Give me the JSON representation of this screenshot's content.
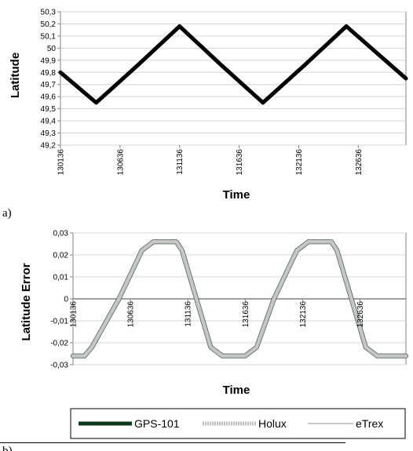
{
  "chart_data": [
    {
      "panel": "a)",
      "type": "line",
      "xlabel": "Time",
      "ylabel": "Latitude",
      "ylim": [
        49.2,
        50.3
      ],
      "xlim": [
        130136,
        133036
      ],
      "yticks": [
        "49,2",
        "49,3",
        "49,4",
        "49,5",
        "49,6",
        "49,7",
        "49,8",
        "49,9",
        "50",
        "50,1",
        "50,2",
        "50,3"
      ],
      "xticks": [
        "130136",
        "130636",
        "131136",
        "131636",
        "132136",
        "132636"
      ],
      "grid": true,
      "series": [
        {
          "color": "#000000",
          "points": [
            [
              130136,
              49.8
            ],
            [
              130436,
              49.55
            ],
            [
              130786,
              49.86
            ],
            [
              131136,
              50.18
            ],
            [
              131486,
              49.86
            ],
            [
              131836,
              49.55
            ],
            [
              132186,
              49.86
            ],
            [
              132536,
              50.18
            ],
            [
              133036,
              49.75
            ]
          ]
        }
      ]
    },
    {
      "panel": "b)",
      "type": "line",
      "xlabel": "Time",
      "ylabel": "Latitude Error",
      "ylim": [
        -0.03,
        0.03
      ],
      "xlim": [
        130136,
        133036
      ],
      "yticks": [
        "-0,03",
        "-0,02",
        "-0,01",
        "0",
        "0,01",
        "0,02",
        "0,03"
      ],
      "xticks": [
        "130136",
        "130636",
        "131136",
        "131636",
        "132136",
        "132636"
      ],
      "grid": true,
      "legend_position": "bottom",
      "series": [
        {
          "name": "GPS-101",
          "color": "#0b3d1a",
          "points": [
            [
              130136,
              -0.026
            ],
            [
              130236,
              -0.026
            ],
            [
              130300,
              -0.022
            ],
            [
              130536,
              0.0
            ],
            [
              130736,
              0.022
            ],
            [
              130836,
              0.026
            ],
            [
              131036,
              0.026
            ],
            [
              131086,
              0.022
            ],
            [
              131336,
              -0.022
            ],
            [
              131436,
              -0.026
            ],
            [
              131636,
              -0.026
            ],
            [
              131736,
              -0.022
            ],
            [
              131886,
              0.0
            ],
            [
              132086,
              0.022
            ],
            [
              132186,
              0.026
            ],
            [
              132386,
              0.026
            ],
            [
              132436,
              0.022
            ],
            [
              132686,
              -0.022
            ],
            [
              132786,
              -0.026
            ],
            [
              133036,
              -0.026
            ]
          ]
        },
        {
          "name": "Holux",
          "color": "#bfbfbf",
          "points": [
            [
              130136,
              -0.026
            ],
            [
              130236,
              -0.026
            ],
            [
              130300,
              -0.022
            ],
            [
              130536,
              0.0
            ],
            [
              130736,
              0.022
            ],
            [
              130836,
              0.026
            ],
            [
              131036,
              0.026
            ],
            [
              131086,
              0.022
            ],
            [
              131336,
              -0.022
            ],
            [
              131436,
              -0.026
            ],
            [
              131636,
              -0.026
            ],
            [
              131736,
              -0.022
            ],
            [
              131886,
              0.0
            ],
            [
              132086,
              0.022
            ],
            [
              132186,
              0.026
            ],
            [
              132386,
              0.026
            ],
            [
              132436,
              0.022
            ],
            [
              132686,
              -0.022
            ],
            [
              132786,
              -0.026
            ],
            [
              133036,
              -0.026
            ]
          ]
        },
        {
          "name": "eTrex",
          "color": "#c8c8c8",
          "points": [
            [
              130136,
              -0.026
            ],
            [
              130236,
              -0.026
            ],
            [
              130300,
              -0.022
            ],
            [
              130536,
              0.0
            ],
            [
              130736,
              0.022
            ],
            [
              130836,
              0.026
            ],
            [
              131036,
              0.026
            ],
            [
              131086,
              0.022
            ],
            [
              131336,
              -0.022
            ],
            [
              131436,
              -0.026
            ],
            [
              131636,
              -0.026
            ],
            [
              131736,
              -0.022
            ],
            [
              131886,
              0.0
            ],
            [
              132086,
              0.022
            ],
            [
              132186,
              0.026
            ],
            [
              132386,
              0.026
            ],
            [
              132436,
              0.022
            ],
            [
              132686,
              -0.022
            ],
            [
              132786,
              -0.026
            ],
            [
              133036,
              -0.026
            ]
          ]
        }
      ]
    }
  ]
}
